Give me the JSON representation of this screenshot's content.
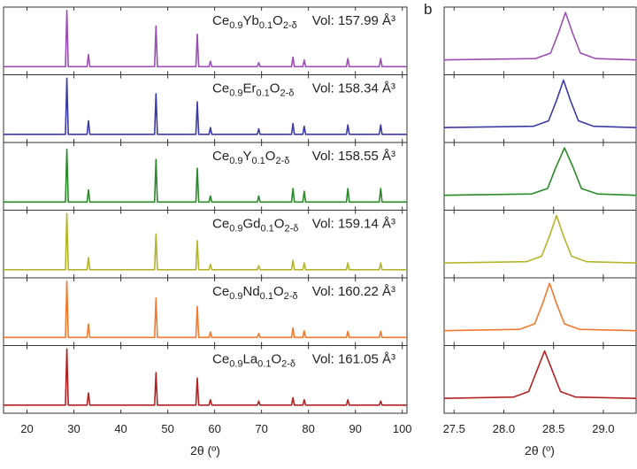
{
  "chart_data": [
    {
      "type": "line",
      "xlabel": "2θ (º)",
      "xlim": [
        15,
        101
      ],
      "xticks": [
        20,
        30,
        40,
        50,
        60,
        70,
        80,
        90,
        100
      ],
      "ylim": [
        0,
        100
      ],
      "x": [
        15,
        28.2,
        28.5,
        28.8,
        32.8,
        33.1,
        33.4,
        47.2,
        47.5,
        47.8,
        56.0,
        56.3,
        56.6,
        58.8,
        59.1,
        59.4,
        69.1,
        69.4,
        69.7,
        76.4,
        76.7,
        77.0,
        78.8,
        79.1,
        79.4,
        88.1,
        88.4,
        88.7,
        95.1,
        95.4,
        95.7,
        101
      ],
      "series": [
        {
          "name": "Ce0.9Yb0.1O2-δ",
          "label": "Vol: 157.99 Å³",
          "color": "#9b4fb5",
          "values": [
            12,
            12,
            95,
            12,
            12,
            30,
            12,
            12,
            72,
            12,
            12,
            60,
            12,
            12,
            20,
            12,
            12,
            18,
            12,
            12,
            26,
            12,
            12,
            22,
            12,
            12,
            24,
            12,
            12,
            24,
            12,
            12
          ]
        },
        {
          "name": "Ce0.9Er0.1O2-δ",
          "label": "Vol: 158.34 Å³",
          "color": "#3b3ba5",
          "values": [
            12,
            12,
            95,
            12,
            12,
            32,
            12,
            12,
            72,
            12,
            12,
            60,
            12,
            12,
            22,
            12,
            12,
            20,
            12,
            12,
            28,
            12,
            12,
            24,
            12,
            12,
            26,
            12,
            12,
            26,
            12,
            12
          ]
        },
        {
          "name": "Ce0.9Y0.1O2-δ",
          "label": "Vol: 158.55 Å³",
          "color": "#2a8a2a",
          "values": [
            12,
            12,
            90,
            12,
            12,
            30,
            12,
            12,
            75,
            12,
            12,
            62,
            12,
            12,
            21,
            12,
            12,
            21,
            12,
            12,
            32,
            12,
            12,
            28,
            12,
            12,
            32,
            12,
            12,
            32,
            12,
            12
          ]
        },
        {
          "name": "Ce0.9Gd0.1O2-δ",
          "label": "Vol: 159.14 Å³",
          "color": "#b5b52a",
          "values": [
            12,
            12,
            95,
            12,
            12,
            30,
            12,
            12,
            65,
            12,
            12,
            55,
            12,
            12,
            20,
            12,
            12,
            18,
            12,
            12,
            26,
            12,
            12,
            22,
            12,
            12,
            22,
            12,
            12,
            22,
            12,
            12
          ]
        },
        {
          "name": "Ce0.9Nd0.1O2-δ",
          "label": "Vol: 160.22 Å³",
          "color": "#f07a30",
          "values": [
            12,
            12,
            95,
            12,
            12,
            32,
            12,
            12,
            70,
            12,
            12,
            58,
            12,
            12,
            20,
            12,
            12,
            18,
            12,
            12,
            26,
            12,
            12,
            22,
            12,
            12,
            21,
            12,
            12,
            21,
            12,
            12
          ]
        },
        {
          "name": "Ce0.9La0.1O2-δ",
          "label": "Vol: 161.05 Å³",
          "color": "#b22222",
          "values": [
            12,
            12,
            95,
            12,
            12,
            30,
            12,
            12,
            60,
            12,
            12,
            52,
            12,
            12,
            20,
            12,
            12,
            18,
            12,
            12,
            23,
            12,
            12,
            20,
            12,
            12,
            20,
            12,
            12,
            18,
            12,
            12
          ]
        }
      ]
    },
    {
      "type": "line",
      "panel_label": "b",
      "xlabel": "2θ (º)",
      "xlim": [
        27.4,
        29.33
      ],
      "xticks": [
        27.5,
        {
          "value": 28,
          "label": "28.0"
        },
        28.5,
        {
          "value": 29,
          "label": "29.0"
        }
      ],
      "ylim": [
        0,
        100
      ],
      "series": [
        {
          "color": "#9b4fb5",
          "x": [
            27.4,
            28.32,
            28.47,
            28.55,
            28.62,
            28.69,
            28.77,
            28.92,
            29.33
          ],
          "values": [
            22,
            24,
            32,
            62,
            92,
            62,
            32,
            24,
            22
          ]
        },
        {
          "color": "#3b3ba5",
          "x": [
            27.4,
            28.3,
            28.45,
            28.53,
            28.6,
            28.67,
            28.75,
            28.9,
            29.33
          ],
          "values": [
            22,
            24,
            32,
            62,
            92,
            62,
            32,
            24,
            22
          ]
        },
        {
          "color": "#2a8a2a",
          "x": [
            27.4,
            28.28,
            28.44,
            28.52,
            28.61,
            28.7,
            28.78,
            28.94,
            29.33
          ],
          "values": [
            22,
            24,
            32,
            62,
            92,
            62,
            32,
            24,
            22
          ]
        },
        {
          "color": "#b5b52a",
          "x": [
            27.4,
            28.23,
            28.38,
            28.46,
            28.53,
            28.6,
            28.68,
            28.83,
            29.33
          ],
          "values": [
            22,
            24,
            32,
            62,
            92,
            62,
            32,
            24,
            22
          ]
        },
        {
          "color": "#f07a30",
          "x": [
            27.4,
            28.16,
            28.31,
            28.39,
            28.46,
            28.53,
            28.61,
            28.76,
            29.33
          ],
          "values": [
            22,
            24,
            32,
            62,
            92,
            62,
            32,
            24,
            22
          ]
        },
        {
          "color": "#b22222",
          "x": [
            27.4,
            28.1,
            28.25,
            28.33,
            28.41,
            28.49,
            28.57,
            28.72,
            29.33
          ],
          "values": [
            22,
            24,
            32,
            62,
            92,
            62,
            32,
            24,
            22
          ]
        }
      ]
    }
  ]
}
